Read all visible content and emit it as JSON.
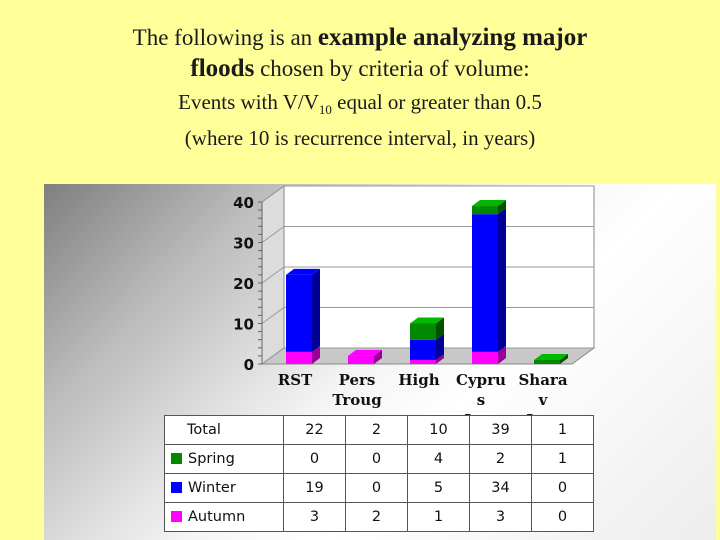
{
  "heading": {
    "line1_pre": "The following is an",
    "line1_big": "example analyzing major",
    "line2_big": "floods",
    "line2_post": "chosen by criteria of volume:",
    "line3_pre": "Events with V/V",
    "line3_sub": "10",
    "line3_post": "equal or greater than 0.5",
    "line4": "(where 10 is recurrence interval, in years)"
  },
  "colors": {
    "Spring": "#008800",
    "Winter": "#0000ff",
    "Autumn": "#ff00ff"
  },
  "chart_data": {
    "type": "bar",
    "stacked": true,
    "categories": [
      "RST",
      "Pers Troug",
      "High",
      "Cypru s Low",
      "Shara v Low"
    ],
    "series": [
      {
        "name": "Spring",
        "values": [
          0,
          0,
          4,
          2,
          1
        ]
      },
      {
        "name": "Winter",
        "values": [
          19,
          0,
          5,
          34,
          0
        ]
      },
      {
        "name": "Autumn",
        "values": [
          3,
          2,
          1,
          3,
          0
        ]
      }
    ],
    "totals_label": "Total",
    "totals": [
      22,
      2,
      10,
      39,
      1
    ],
    "y_ticks": [
      "0",
      "10",
      "20",
      "30",
      "40"
    ],
    "ylim": [
      0,
      40
    ],
    "grid": true,
    "legend": "data table below chart"
  }
}
